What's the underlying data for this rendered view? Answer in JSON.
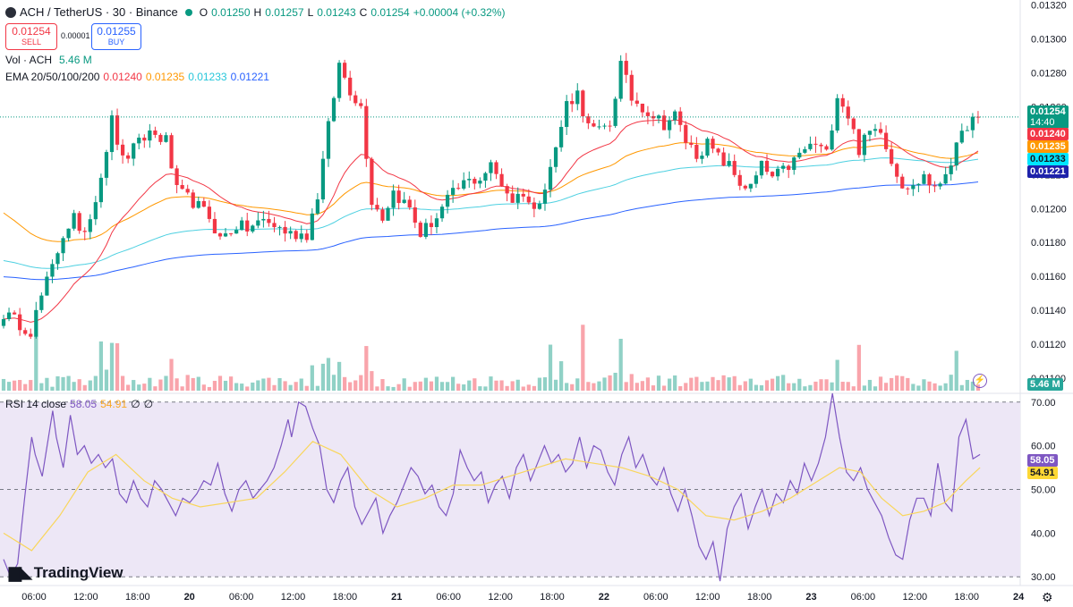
{
  "header": {
    "symbol": "ACH / TetherUS · 30 · Binance",
    "open_label": "O",
    "open": "0.01250",
    "high_label": "H",
    "high": "0.01257",
    "low_label": "L",
    "low": "0.01243",
    "close_label": "C",
    "close": "0.01254",
    "change": "+0.00004 (+0.32%)"
  },
  "trade": {
    "sell_price": "0.01254",
    "sell_label": "SELL",
    "spread": "0.00001",
    "buy_price": "0.01255",
    "buy_label": "BUY"
  },
  "vol_legend": {
    "label": "Vol · ACH",
    "value": "5.46 M"
  },
  "ema_legend": {
    "label": "EMA 20/50/100/200",
    "values": [
      "0.01240",
      "0.01235",
      "0.01233",
      "0.01221"
    ],
    "colors": [
      "#f23645",
      "#ff9800",
      "#4dd0e1",
      "#2962ff"
    ]
  },
  "rsi_legend": {
    "label": "RSI 14 close",
    "rsi": "58.05",
    "ma": "54.91",
    "extra1": "∅",
    "extra2": "∅"
  },
  "price_badges": {
    "last": "0.01254",
    "countdown": "14:40",
    "ema20": "0.01240",
    "ema50": "0.01235",
    "ema100": "0.01233",
    "ema200": "0.01221",
    "volume": "5.46 M",
    "rsi": "58.05",
    "rsi_ma": "54.91"
  },
  "colors": {
    "up": "#089981",
    "down": "#f23645",
    "rsi_line": "#7e57c2",
    "rsi_ma": "#fdd835",
    "rsi_band": "#ede7f6"
  },
  "branding": {
    "logo_text": "TradingView"
  },
  "chart_data": {
    "type": "candlestick",
    "price_axis": {
      "ticks": [
        "0.01320",
        "0.01300",
        "0.01280",
        "0.01260",
        "0.01240",
        "0.01220",
        "0.01200",
        "0.01180",
        "0.01160",
        "0.01140",
        "0.01120",
        "0.01100"
      ],
      "range": [
        0.01091,
        0.01323
      ]
    },
    "rsi_axis": {
      "ticks": [
        "70.00",
        "60.00",
        "50.00",
        "40.00",
        "30.00"
      ],
      "range": [
        28,
        72
      ],
      "bands": [
        30,
        70
      ],
      "mid": 50
    },
    "time_axis": [
      "06:00",
      "12:00",
      "18:00",
      "20",
      "06:00",
      "12:00",
      "18:00",
      "21",
      "06:00",
      "12:00",
      "18:00",
      "22",
      "06:00",
      "12:00",
      "18:00",
      "23",
      "06:00",
      "12:00",
      "18:00",
      "24"
    ],
    "price_path": [
      [
        0,
        0.01138
      ],
      [
        3,
        0.01132
      ],
      [
        5,
        0.01128
      ],
      [
        7,
        0.01148
      ],
      [
        9,
        0.01165
      ],
      [
        11,
        0.01185
      ],
      [
        13,
        0.01195
      ],
      [
        14,
        0.01183
      ],
      [
        16,
        0.01195
      ],
      [
        18,
        0.0122
      ],
      [
        20,
        0.01252
      ],
      [
        22,
        0.01228
      ],
      [
        24,
        0.01235
      ],
      [
        27,
        0.01245
      ],
      [
        30,
        0.0124
      ],
      [
        32,
        0.0121
      ],
      [
        35,
        0.01204
      ],
      [
        38,
        0.01195
      ],
      [
        40,
        0.01182
      ],
      [
        43,
        0.0119
      ],
      [
        45,
        0.01188
      ],
      [
        48,
        0.01193
      ],
      [
        50,
        0.0119
      ],
      [
        53,
        0.01185
      ],
      [
        56,
        0.01185
      ],
      [
        58,
        0.01208
      ],
      [
        60,
        0.01248
      ],
      [
        62,
        0.01285
      ],
      [
        64,
        0.0127
      ],
      [
        66,
        0.0126
      ],
      [
        68,
        0.01205
      ],
      [
        70,
        0.01195
      ],
      [
        72,
        0.0121
      ],
      [
        75,
        0.012
      ],
      [
        77,
        0.01185
      ],
      [
        80,
        0.01195
      ],
      [
        82,
        0.01205
      ],
      [
        85,
        0.01215
      ],
      [
        88,
        0.01218
      ],
      [
        90,
        0.01225
      ],
      [
        92,
        0.01215
      ],
      [
        94,
        0.01205
      ],
      [
        96,
        0.0121
      ],
      [
        98,
        0.01198
      ],
      [
        100,
        0.01215
      ],
      [
        102,
        0.01235
      ],
      [
        104,
        0.01262
      ],
      [
        106,
        0.01268
      ],
      [
        108,
        0.01248
      ],
      [
        110,
        0.01245
      ],
      [
        112,
        0.0125
      ],
      [
        114,
        0.01285
      ],
      [
        116,
        0.01265
      ],
      [
        118,
        0.0126
      ],
      [
        120,
        0.01255
      ],
      [
        122,
        0.0125
      ],
      [
        124,
        0.01255
      ],
      [
        126,
        0.0124
      ],
      [
        128,
        0.01232
      ],
      [
        130,
        0.01238
      ],
      [
        132,
        0.0123
      ],
      [
        134,
        0.01225
      ],
      [
        136,
        0.01215
      ],
      [
        138,
        0.01212
      ],
      [
        140,
        0.01225
      ],
      [
        142,
        0.01218
      ],
      [
        144,
        0.01222
      ],
      [
        146,
        0.01228
      ],
      [
        148,
        0.01235
      ],
      [
        150,
        0.01238
      ],
      [
        152,
        0.01232
      ],
      [
        154,
        0.01268
      ],
      [
        156,
        0.01255
      ],
      [
        158,
        0.01235
      ],
      [
        160,
        0.01245
      ],
      [
        162,
        0.01248
      ],
      [
        164,
        0.01228
      ],
      [
        166,
        0.01215
      ],
      [
        168,
        0.01212
      ],
      [
        170,
        0.0122
      ],
      [
        172,
        0.0121
      ],
      [
        174,
        0.01222
      ],
      [
        176,
        0.01235
      ],
      [
        178,
        0.0125
      ],
      [
        180,
        0.01254
      ]
    ],
    "rsi_path": [
      [
        0,
        34
      ],
      [
        2,
        30
      ],
      [
        4,
        33
      ],
      [
        6,
        48
      ],
      [
        8,
        62
      ],
      [
        9,
        58
      ],
      [
        11,
        53
      ],
      [
        12,
        58
      ],
      [
        14,
        68
      ],
      [
        15,
        62
      ],
      [
        17,
        55
      ],
      [
        19,
        67
      ],
      [
        21,
        58
      ],
      [
        23,
        60
      ],
      [
        25,
        56
      ],
      [
        27,
        58
      ],
      [
        29,
        55
      ],
      [
        31,
        57
      ],
      [
        33,
        49
      ],
      [
        35,
        47
      ],
      [
        37,
        52
      ],
      [
        39,
        48
      ],
      [
        41,
        46
      ],
      [
        43,
        52
      ],
      [
        45,
        50
      ],
      [
        47,
        47
      ],
      [
        49,
        44
      ],
      [
        51,
        48
      ],
      [
        53,
        47
      ],
      [
        55,
        49
      ],
      [
        57,
        52
      ],
      [
        59,
        51
      ],
      [
        61,
        56
      ],
      [
        63,
        49
      ],
      [
        65,
        45
      ],
      [
        67,
        50
      ],
      [
        69,
        52
      ],
      [
        71,
        48
      ],
      [
        73,
        50
      ],
      [
        75,
        52
      ],
      [
        77,
        55
      ],
      [
        79,
        60
      ],
      [
        81,
        66
      ],
      [
        82,
        62
      ],
      [
        84,
        70
      ],
      [
        86,
        69
      ],
      [
        88,
        64
      ],
      [
        90,
        60
      ],
      [
        92,
        50
      ],
      [
        94,
        47
      ],
      [
        96,
        52
      ],
      [
        98,
        55
      ],
      [
        100,
        46
      ],
      [
        102,
        42
      ],
      [
        104,
        45
      ],
      [
        106,
        48
      ],
      [
        108,
        40
      ],
      [
        110,
        44
      ],
      [
        112,
        47
      ],
      [
        114,
        51
      ],
      [
        116,
        55
      ],
      [
        118,
        53
      ],
      [
        120,
        49
      ],
      [
        122,
        51
      ],
      [
        124,
        46
      ],
      [
        126,
        44
      ],
      [
        128,
        49
      ],
      [
        130,
        59
      ],
      [
        132,
        55
      ],
      [
        134,
        52
      ],
      [
        136,
        54
      ],
      [
        138,
        47
      ],
      [
        140,
        51
      ],
      [
        142,
        53
      ],
      [
        144,
        48
      ],
      [
        146,
        55
      ],
      [
        148,
        58
      ],
      [
        150,
        52
      ],
      [
        152,
        56
      ],
      [
        154,
        60
      ],
      [
        156,
        56
      ],
      [
        158,
        58
      ],
      [
        160,
        54
      ],
      [
        162,
        56
      ],
      [
        164,
        62
      ],
      [
        166,
        55
      ],
      [
        168,
        60
      ],
      [
        170,
        59
      ],
      [
        172,
        54
      ],
      [
        174,
        51
      ],
      [
        176,
        58
      ],
      [
        178,
        62
      ],
      [
        180,
        55
      ],
      [
        182,
        58
      ],
      [
        184,
        53
      ],
      [
        186,
        51
      ],
      [
        188,
        55
      ],
      [
        190,
        49
      ],
      [
        192,
        45
      ],
      [
        194,
        50
      ],
      [
        196,
        44
      ],
      [
        198,
        37
      ],
      [
        200,
        34
      ],
      [
        202,
        38
      ],
      [
        204,
        29
      ],
      [
        206,
        41
      ],
      [
        208,
        46
      ],
      [
        210,
        49
      ],
      [
        212,
        41
      ],
      [
        214,
        46
      ],
      [
        216,
        50
      ],
      [
        218,
        44
      ],
      [
        220,
        49
      ],
      [
        222,
        47
      ],
      [
        224,
        52
      ],
      [
        226,
        49
      ],
      [
        228,
        56
      ],
      [
        230,
        52
      ],
      [
        232,
        56
      ],
      [
        234,
        62
      ],
      [
        236,
        72
      ],
      [
        238,
        62
      ],
      [
        240,
        54
      ],
      [
        242,
        52
      ],
      [
        244,
        55
      ],
      [
        246,
        50
      ],
      [
        248,
        47
      ],
      [
        250,
        44
      ],
      [
        252,
        39
      ],
      [
        254,
        35
      ],
      [
        256,
        34
      ],
      [
        258,
        43
      ],
      [
        260,
        48
      ],
      [
        262,
        48
      ],
      [
        264,
        44
      ],
      [
        266,
        56
      ],
      [
        268,
        47
      ],
      [
        270,
        45
      ],
      [
        272,
        62
      ],
      [
        274,
        66
      ],
      [
        276,
        57
      ],
      [
        278,
        58
      ]
    ],
    "rsi_ma_path": [
      [
        0,
        40
      ],
      [
        8,
        36
      ],
      [
        16,
        44
      ],
      [
        24,
        54
      ],
      [
        32,
        58
      ],
      [
        40,
        52
      ],
      [
        48,
        48
      ],
      [
        56,
        46
      ],
      [
        64,
        47
      ],
      [
        72,
        48
      ],
      [
        80,
        54
      ],
      [
        88,
        61
      ],
      [
        96,
        58
      ],
      [
        104,
        50
      ],
      [
        112,
        46
      ],
      [
        120,
        48
      ],
      [
        128,
        51
      ],
      [
        136,
        51
      ],
      [
        144,
        53
      ],
      [
        152,
        55
      ],
      [
        160,
        57
      ],
      [
        168,
        56
      ],
      [
        176,
        55
      ],
      [
        184,
        53
      ],
      [
        192,
        50
      ],
      [
        200,
        44
      ],
      [
        208,
        43
      ],
      [
        216,
        45
      ],
      [
        224,
        48
      ],
      [
        232,
        52
      ],
      [
        238,
        55
      ],
      [
        244,
        54
      ],
      [
        250,
        48
      ],
      [
        256,
        44
      ],
      [
        262,
        45
      ],
      [
        268,
        47
      ],
      [
        274,
        52
      ],
      [
        278,
        55
      ]
    ],
    "legend": [
      "EMA 20",
      "EMA 50",
      "EMA 100",
      "EMA 200",
      "Vol · ACH",
      "RSI 14 close"
    ],
    "last_value": 0.01254
  }
}
